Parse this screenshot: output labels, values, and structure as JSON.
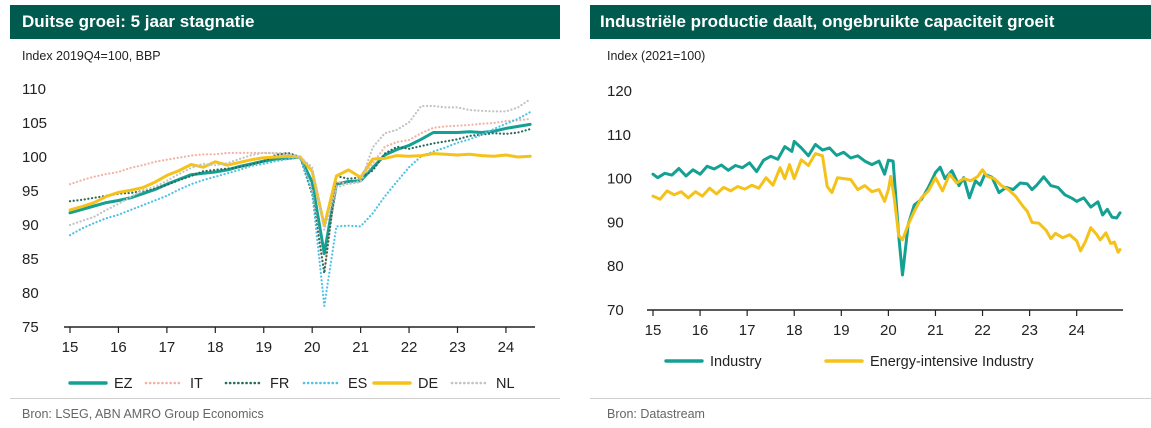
{
  "chart_data": [
    {
      "type": "line",
      "title": "Duitse groei: 5 jaar stagnatie",
      "subtitle": "Index 2019Q4=100, BBP",
      "source": "Bron: LSEG, ABN AMRO Group Economics",
      "xlabel": "",
      "ylabel": "",
      "xlim": [
        2015,
        2024.6
      ],
      "ylim": [
        75,
        110
      ],
      "y_ticks": [
        75,
        80,
        85,
        90,
        95,
        100,
        105,
        110
      ],
      "x_ticks": [
        2015,
        2016,
        2017,
        2018,
        2019,
        2020,
        2021,
        2022,
        2023,
        2024
      ],
      "x_tick_labels": [
        "15",
        "16",
        "17",
        "18",
        "19",
        "20",
        "21",
        "22",
        "23",
        "24"
      ],
      "grid": false,
      "legend": "bottom",
      "x": [
        2015.0,
        2015.25,
        2015.5,
        2015.75,
        2016.0,
        2016.25,
        2016.5,
        2016.75,
        2017.0,
        2017.25,
        2017.5,
        2017.75,
        2018.0,
        2018.25,
        2018.5,
        2018.75,
        2019.0,
        2019.25,
        2019.5,
        2019.75,
        2020.0,
        2020.25,
        2020.5,
        2020.75,
        2021.0,
        2021.25,
        2021.5,
        2021.75,
        2022.0,
        2022.25,
        2022.5,
        2022.75,
        2023.0,
        2023.25,
        2023.5,
        2023.75,
        2024.0,
        2024.25,
        2024.5
      ],
      "series": [
        {
          "name": "EZ",
          "color": "#14a092",
          "style": "solid",
          "values": [
            91.8,
            92.3,
            92.8,
            93.3,
            93.6,
            94.0,
            94.6,
            95.2,
            96.0,
            96.7,
            97.4,
            97.6,
            97.8,
            98.1,
            98.6,
            99.0,
            99.4,
            99.7,
            99.8,
            100.0,
            96.3,
            85.8,
            96.0,
            96.4,
            96.5,
            98.4,
            100.3,
            101.1,
            101.7,
            102.6,
            103.6,
            103.6,
            103.6,
            103.7,
            103.6,
            103.8,
            104.2,
            104.5,
            104.8
          ]
        },
        {
          "name": "IT",
          "color": "#f2b3a6",
          "style": "dotted",
          "values": [
            96.0,
            96.6,
            97.1,
            97.5,
            97.8,
            98.4,
            98.8,
            99.3,
            99.6,
            99.9,
            100.2,
            100.4,
            100.4,
            100.6,
            100.6,
            100.6,
            100.6,
            100.5,
            100.3,
            100.0,
            95.0,
            83.0,
            96.4,
            96.0,
            96.5,
            99.0,
            101.5,
            102.2,
            102.5,
            103.5,
            104.3,
            104.5,
            104.6,
            104.7,
            104.9,
            105.0,
            105.3,
            105.4,
            105.6
          ]
        },
        {
          "name": "FR",
          "color": "#2a6b5e",
          "style": "dotted",
          "values": [
            93.5,
            93.7,
            94.0,
            94.3,
            94.6,
            94.7,
            95.0,
            95.4,
            95.9,
            96.6,
            97.2,
            97.9,
            98.1,
            98.3,
            98.5,
            98.9,
            99.4,
            100.3,
            100.6,
            100.0,
            94.5,
            82.9,
            97.2,
            96.8,
            97.0,
            98.0,
            100.5,
            101.5,
            101.2,
            101.6,
            102.0,
            102.3,
            102.6,
            103.1,
            103.3,
            103.5,
            103.4,
            103.6,
            104.1
          ]
        },
        {
          "name": "ES",
          "color": "#4fc3e6",
          "style": "dotted",
          "values": [
            88.5,
            89.5,
            90.3,
            91.0,
            91.5,
            92.2,
            92.9,
            93.6,
            94.3,
            95.2,
            96.0,
            96.6,
            97.1,
            97.6,
            98.1,
            98.7,
            99.0,
            99.4,
            99.7,
            100.0,
            94.8,
            78.1,
            89.8,
            89.9,
            89.8,
            91.7,
            94.2,
            96.4,
            98.5,
            100.1,
            100.8,
            101.4,
            102.1,
            102.6,
            103.3,
            104.1,
            104.9,
            105.6,
            106.6
          ]
        },
        {
          "name": "DE",
          "color": "#f5c21a",
          "style": "solid",
          "values": [
            92.2,
            92.7,
            93.3,
            94.2,
            94.8,
            95.1,
            95.5,
            96.3,
            97.3,
            98.0,
            98.9,
            98.5,
            99.3,
            98.8,
            99.2,
            99.6,
            99.9,
            100.0,
            100.1,
            100.0,
            97.9,
            89.9,
            97.2,
            98.1,
            97.0,
            99.7,
            99.8,
            100.2,
            100.1,
            100.2,
            100.5,
            100.4,
            100.3,
            100.4,
            100.2,
            100.1,
            100.3,
            100.0,
            100.1
          ]
        },
        {
          "name": "NL",
          "color": "#c3c3c3",
          "style": "dotted",
          "values": [
            90.0,
            90.6,
            91.2,
            92.2,
            93.1,
            94.1,
            95.1,
            95.6,
            96.5,
            97.5,
            98.4,
            99.0,
            98.8,
            99.1,
            99.7,
            100.3,
            100.6,
            100.6,
            100.5,
            100.0,
            98.5,
            89.3,
            95.5,
            96.1,
            96.3,
            101.4,
            103.5,
            104.0,
            105.1,
            107.5,
            107.5,
            107.3,
            107.3,
            106.9,
            106.8,
            106.7,
            106.7,
            107.3,
            108.5
          ]
        }
      ]
    },
    {
      "type": "line",
      "title": "Industriële productie daalt, ongebruikte capaciteit groeit",
      "subtitle": "Index (2021=100)",
      "source": "Bron: Datastream",
      "xlabel": "",
      "ylabel": "",
      "xlim": [
        2015,
        2024.92
      ],
      "ylim": [
        70,
        120
      ],
      "y_ticks": [
        70,
        80,
        90,
        100,
        110,
        120
      ],
      "x_ticks": [
        2015,
        2016,
        2017,
        2018,
        2019,
        2020,
        2021,
        2022,
        2023,
        2024
      ],
      "x_tick_labels": [
        "15",
        "16",
        "17",
        "18",
        "19",
        "20",
        "21",
        "22",
        "23",
        "24"
      ],
      "grid": false,
      "legend": "bottom",
      "series": [
        {
          "name": "Industry",
          "color": "#14a092",
          "style": "solid",
          "width": 3,
          "points": [
            [
              2015.0,
              101
            ],
            [
              2015.1,
              100.2
            ],
            [
              2015.25,
              101.2
            ],
            [
              2015.4,
              100.8
            ],
            [
              2015.55,
              102.3
            ],
            [
              2015.7,
              100.6
            ],
            [
              2015.85,
              102.0
            ],
            [
              2016.0,
              101.0
            ],
            [
              2016.15,
              102.8
            ],
            [
              2016.3,
              102.2
            ],
            [
              2016.45,
              103.1
            ],
            [
              2016.6,
              101.9
            ],
            [
              2016.75,
              103.0
            ],
            [
              2016.9,
              102.5
            ],
            [
              2017.05,
              103.6
            ],
            [
              2017.2,
              101.6
            ],
            [
              2017.35,
              104.2
            ],
            [
              2017.5,
              105.1
            ],
            [
              2017.65,
              104.4
            ],
            [
              2017.8,
              107.3
            ],
            [
              2017.95,
              106.2
            ],
            [
              2018.0,
              108.5
            ],
            [
              2018.15,
              107.0
            ],
            [
              2018.3,
              105.2
            ],
            [
              2018.45,
              107.8
            ],
            [
              2018.6,
              106.5
            ],
            [
              2018.75,
              107.0
            ],
            [
              2018.9,
              105.3
            ],
            [
              2019.05,
              106.0
            ],
            [
              2019.2,
              104.7
            ],
            [
              2019.35,
              105.2
            ],
            [
              2019.5,
              104.0
            ],
            [
              2019.65,
              103.2
            ],
            [
              2019.8,
              104.0
            ],
            [
              2019.92,
              101.0
            ],
            [
              2020.0,
              104.2
            ],
            [
              2020.1,
              104.0
            ],
            [
              2020.22,
              87.0
            ],
            [
              2020.3,
              78.0
            ],
            [
              2020.42,
              89.5
            ],
            [
              2020.55,
              94.0
            ],
            [
              2020.7,
              95.2
            ],
            [
              2020.85,
              98.0
            ],
            [
              2021.0,
              101.4
            ],
            [
              2021.1,
              102.6
            ],
            [
              2021.2,
              100.0
            ],
            [
              2021.35,
              101.8
            ],
            [
              2021.5,
              98.4
            ],
            [
              2021.6,
              100.2
            ],
            [
              2021.72,
              95.6
            ],
            [
              2021.85,
              99.5
            ],
            [
              2021.95,
              98.5
            ],
            [
              2022.05,
              101.0
            ],
            [
              2022.2,
              100.3
            ],
            [
              2022.35,
              96.8
            ],
            [
              2022.5,
              98.0
            ],
            [
              2022.65,
              97.5
            ],
            [
              2022.8,
              99.0
            ],
            [
              2022.95,
              98.8
            ],
            [
              2023.05,
              97.5
            ],
            [
              2023.15,
              98.5
            ],
            [
              2023.3,
              100.4
            ],
            [
              2023.45,
              98.4
            ],
            [
              2023.6,
              98.0
            ],
            [
              2023.75,
              96.3
            ],
            [
              2023.9,
              95.5
            ],
            [
              2024.0,
              94.8
            ],
            [
              2024.15,
              95.6
            ],
            [
              2024.3,
              93.5
            ],
            [
              2024.45,
              94.7
            ],
            [
              2024.55,
              91.7
            ],
            [
              2024.65,
              93.0
            ],
            [
              2024.75,
              91.2
            ],
            [
              2024.85,
              91.0
            ],
            [
              2024.92,
              92.2
            ]
          ]
        },
        {
          "name": "Energy-intensive Industry",
          "color": "#f5c21a",
          "style": "solid",
          "width": 3,
          "points": [
            [
              2015.0,
              96
            ],
            [
              2015.15,
              95.3
            ],
            [
              2015.3,
              97.2
            ],
            [
              2015.45,
              96.3
            ],
            [
              2015.6,
              97.0
            ],
            [
              2015.75,
              95.6
            ],
            [
              2015.9,
              97.0
            ],
            [
              2016.05,
              96.0
            ],
            [
              2016.2,
              97.8
            ],
            [
              2016.35,
              96.5
            ],
            [
              2016.5,
              98.0
            ],
            [
              2016.65,
              97.2
            ],
            [
              2016.8,
              98.2
            ],
            [
              2016.95,
              97.6
            ],
            [
              2017.1,
              98.5
            ],
            [
              2017.25,
              97.8
            ],
            [
              2017.4,
              100.2
            ],
            [
              2017.55,
              98.5
            ],
            [
              2017.7,
              102.5
            ],
            [
              2017.8,
              100.0
            ],
            [
              2017.9,
              103.2
            ],
            [
              2018.0,
              100.0
            ],
            [
              2018.15,
              104.3
            ],
            [
              2018.3,
              103.0
            ],
            [
              2018.45,
              105.7
            ],
            [
              2018.6,
              105.2
            ],
            [
              2018.7,
              98.2
            ],
            [
              2018.8,
              96.8
            ],
            [
              2018.92,
              100.2
            ],
            [
              2019.05,
              100.0
            ],
            [
              2019.2,
              99.8
            ],
            [
              2019.35,
              97.5
            ],
            [
              2019.5,
              98.4
            ],
            [
              2019.65,
              97.0
            ],
            [
              2019.8,
              97.5
            ],
            [
              2019.92,
              94.8
            ],
            [
              2020.0,
              97.5
            ],
            [
              2020.05,
              100.5
            ],
            [
              2020.12,
              96.0
            ],
            [
              2020.22,
              87.0
            ],
            [
              2020.3,
              86.0
            ],
            [
              2020.42,
              89.5
            ],
            [
              2020.55,
              92.5
            ],
            [
              2020.7,
              95.6
            ],
            [
              2020.85,
              97.2
            ],
            [
              2021.0,
              100.2
            ],
            [
              2021.15,
              97.2
            ],
            [
              2021.3,
              101.0
            ],
            [
              2021.45,
              99.0
            ],
            [
              2021.6,
              100.0
            ],
            [
              2021.75,
              99.5
            ],
            [
              2021.9,
              100.5
            ],
            [
              2022.0,
              102.0
            ],
            [
              2022.1,
              100.5
            ],
            [
              2022.25,
              100.0
            ],
            [
              2022.4,
              98.4
            ],
            [
              2022.55,
              97.5
            ],
            [
              2022.7,
              96.0
            ],
            [
              2022.85,
              93.8
            ],
            [
              2022.95,
              92.5
            ],
            [
              2023.05,
              90.0
            ],
            [
              2023.2,
              89.8
            ],
            [
              2023.35,
              88.2
            ],
            [
              2023.45,
              86.3
            ],
            [
              2023.55,
              87.5
            ],
            [
              2023.7,
              86.5
            ],
            [
              2023.85,
              87.2
            ],
            [
              2024.0,
              85.8
            ],
            [
              2024.08,
              83.5
            ],
            [
              2024.18,
              85.5
            ],
            [
              2024.3,
              88.8
            ],
            [
              2024.42,
              87.3
            ],
            [
              2024.5,
              86.0
            ],
            [
              2024.62,
              87.6
            ],
            [
              2024.72,
              85.2
            ],
            [
              2024.8,
              85.5
            ],
            [
              2024.88,
              83.2
            ],
            [
              2024.92,
              83.8
            ]
          ]
        }
      ]
    }
  ]
}
